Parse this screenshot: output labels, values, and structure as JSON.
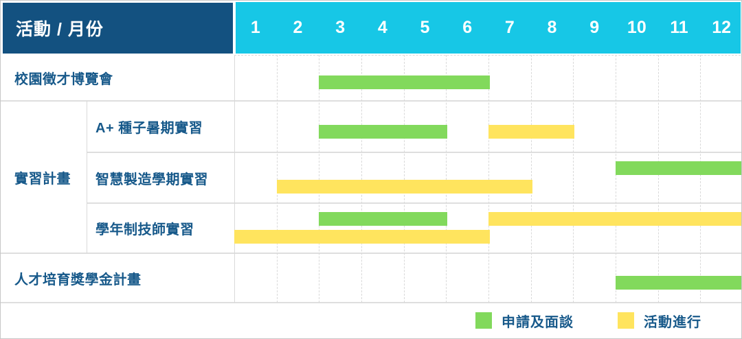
{
  "title": "活動 / 月份",
  "months": [
    "1",
    "2",
    "3",
    "4",
    "5",
    "6",
    "7",
    "8",
    "9",
    "10",
    "11",
    "12"
  ],
  "group_label": "實習計畫",
  "rows": [
    {
      "label": "校園徵才博覽會"
    },
    {
      "label": "A+ 種子暑期實習"
    },
    {
      "label": "智慧製造學期實習"
    },
    {
      "label": "學年制技師實習"
    },
    {
      "label": "人才培育獎學金計畫"
    }
  ],
  "legend": {
    "apply": {
      "label": "申請及面談"
    },
    "activity": {
      "label": "活動進行"
    }
  },
  "colors": {
    "header_bg": "#135180",
    "months_bg": "#17C7E6",
    "text": "#17598A",
    "apply_green": "#82D95C",
    "activity_yellow": "#FFE45E",
    "grid": "#D9D9D9"
  },
  "chart_data": {
    "type": "gantt",
    "title": "活動 / 月份",
    "x_axis": {
      "unit": "month",
      "ticks": [
        1,
        2,
        3,
        4,
        5,
        6,
        7,
        8,
        9,
        10,
        11,
        12
      ]
    },
    "note": "start/end are month boundaries; end is exclusive (start 3, end 7 covers months 3-6; 13 = end of year)",
    "tasks": [
      {
        "name": "校園徵才博覽會",
        "row": 0,
        "bars": [
          {
            "kind": "apply",
            "start": 3,
            "end": 7,
            "lane": "middle"
          }
        ]
      },
      {
        "name": "A+ 種子暑期實習",
        "row": 1,
        "group": "實習計畫",
        "bars": [
          {
            "kind": "apply",
            "start": 3,
            "end": 6,
            "lane": "middle"
          },
          {
            "kind": "activity",
            "start": 7,
            "end": 9,
            "lane": "middle"
          }
        ]
      },
      {
        "name": "智慧製造學期實習",
        "row": 2,
        "group": "實習計畫",
        "bars": [
          {
            "kind": "apply",
            "start": 10,
            "end": 13,
            "lane": "top"
          },
          {
            "kind": "activity",
            "start": 2,
            "end": 8,
            "lane": "bottom"
          }
        ]
      },
      {
        "name": "學年制技師實習",
        "row": 3,
        "group": "實習計畫",
        "bars": [
          {
            "kind": "apply",
            "start": 3,
            "end": 6,
            "lane": "top"
          },
          {
            "kind": "activity",
            "start": 7,
            "end": 13,
            "lane": "top"
          },
          {
            "kind": "activity",
            "start": 1,
            "end": 7,
            "lane": "bottom"
          }
        ]
      },
      {
        "name": "人才培育獎學金計畫",
        "row": 4,
        "bars": [
          {
            "kind": "apply",
            "start": 10,
            "end": 13,
            "lane": "middle"
          }
        ]
      }
    ],
    "legend": [
      {
        "kind": "apply",
        "label": "申請及面談",
        "color": "#82D95C"
      },
      {
        "kind": "activity",
        "label": "活動進行",
        "color": "#FFE45E"
      }
    ]
  }
}
